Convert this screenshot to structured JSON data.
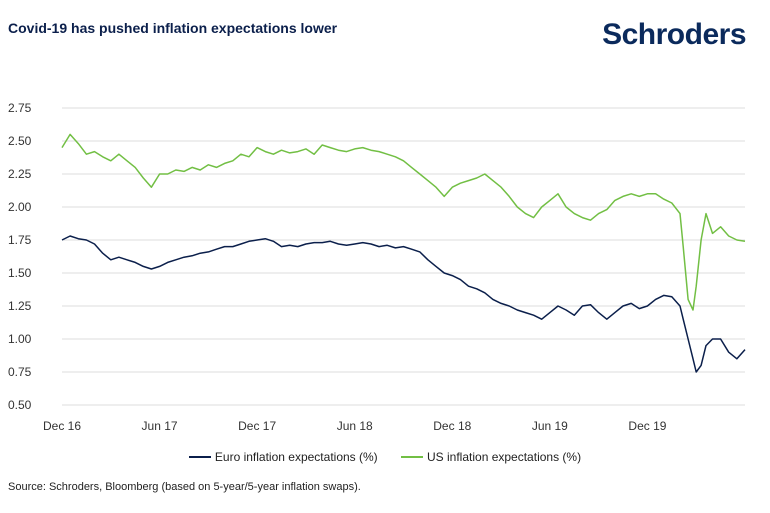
{
  "header": {
    "title": "Covid-19 has pushed inflation expectations lower",
    "logo": "Schroders"
  },
  "footer": {
    "source": "Source: Schroders, Bloomberg (based on 5-year/5-year inflation swaps)."
  },
  "chart_data": {
    "type": "line",
    "title": "Covid-19 has pushed inflation expectations lower",
    "xlabel": "",
    "ylabel": "",
    "ylim": [
      0.5,
      2.75
    ],
    "yticks": [
      "0.50",
      "0.75",
      "1.00",
      "1.25",
      "1.50",
      "1.75",
      "2.00",
      "2.25",
      "2.50",
      "2.75"
    ],
    "ytick_values": [
      0.5,
      0.75,
      1.0,
      1.25,
      1.5,
      1.75,
      2.0,
      2.25,
      2.5,
      2.75
    ],
    "xlim": [
      0,
      42
    ],
    "xticks": [
      "Dec 16",
      "Jun 17",
      "Dec 17",
      "Jun 18",
      "Dec 18",
      "Jun 19",
      "Dec 19"
    ],
    "xtick_values": [
      0,
      6,
      12,
      18,
      24,
      30,
      36
    ],
    "grid": "horizontal",
    "legend_position": "bottom",
    "colors": {
      "euro": "#0b1f4b",
      "us": "#72bf44",
      "grid": "#dddddd"
    },
    "x": [
      0,
      0.5,
      1,
      1.5,
      2,
      2.5,
      3,
      3.5,
      4,
      4.5,
      5,
      5.5,
      6,
      6.5,
      7,
      7.5,
      8,
      8.5,
      9,
      9.5,
      10,
      10.5,
      11,
      11.5,
      12,
      12.5,
      13,
      13.5,
      14,
      14.5,
      15,
      15.5,
      16,
      16.5,
      17,
      17.5,
      18,
      18.5,
      19,
      19.5,
      20,
      20.5,
      21,
      21.5,
      22,
      22.5,
      23,
      23.5,
      24,
      24.5,
      25,
      25.5,
      26,
      26.5,
      27,
      27.5,
      28,
      28.5,
      29,
      29.5,
      30,
      30.5,
      31,
      31.5,
      32,
      32.5,
      33,
      33.5,
      34,
      34.5,
      35,
      35.5,
      36,
      36.5,
      37,
      37.5,
      38,
      38.2,
      38.5,
      38.8,
      39,
      39.3,
      39.6,
      40,
      40.5,
      41,
      41.5,
      42
    ],
    "series": [
      {
        "name": "Euro inflation expectations (%)",
        "values": [
          1.75,
          1.78,
          1.76,
          1.75,
          1.72,
          1.65,
          1.6,
          1.62,
          1.6,
          1.58,
          1.55,
          1.53,
          1.55,
          1.58,
          1.6,
          1.62,
          1.63,
          1.65,
          1.66,
          1.68,
          1.7,
          1.7,
          1.72,
          1.74,
          1.75,
          1.76,
          1.74,
          1.7,
          1.71,
          1.7,
          1.72,
          1.73,
          1.73,
          1.74,
          1.72,
          1.71,
          1.72,
          1.73,
          1.72,
          1.7,
          1.71,
          1.69,
          1.7,
          1.68,
          1.66,
          1.6,
          1.55,
          1.5,
          1.48,
          1.45,
          1.4,
          1.38,
          1.35,
          1.3,
          1.27,
          1.25,
          1.22,
          1.2,
          1.18,
          1.15,
          1.2,
          1.25,
          1.22,
          1.18,
          1.25,
          1.26,
          1.2,
          1.15,
          1.2,
          1.25,
          1.27,
          1.23,
          1.25,
          1.3,
          1.33,
          1.32,
          1.25,
          1.15,
          1.0,
          0.85,
          0.75,
          0.8,
          0.95,
          1.0,
          1.0,
          0.9,
          0.85,
          0.92
        ]
      },
      {
        "name": "US inflation expectations (%)",
        "values": [
          2.45,
          2.55,
          2.48,
          2.4,
          2.42,
          2.38,
          2.35,
          2.4,
          2.35,
          2.3,
          2.22,
          2.15,
          2.25,
          2.25,
          2.28,
          2.27,
          2.3,
          2.28,
          2.32,
          2.3,
          2.33,
          2.35,
          2.4,
          2.38,
          2.45,
          2.42,
          2.4,
          2.43,
          2.41,
          2.42,
          2.44,
          2.4,
          2.47,
          2.45,
          2.43,
          2.42,
          2.44,
          2.45,
          2.43,
          2.42,
          2.4,
          2.38,
          2.35,
          2.3,
          2.25,
          2.2,
          2.15,
          2.08,
          2.15,
          2.18,
          2.2,
          2.22,
          2.25,
          2.2,
          2.15,
          2.08,
          2.0,
          1.95,
          1.92,
          2.0,
          2.05,
          2.1,
          2.0,
          1.95,
          1.92,
          1.9,
          1.95,
          1.98,
          2.05,
          2.08,
          2.1,
          2.08,
          2.1,
          2.1,
          2.06,
          2.03,
          1.95,
          1.7,
          1.3,
          1.22,
          1.4,
          1.75,
          1.95,
          1.8,
          1.85,
          1.78,
          1.75,
          1.74
        ]
      }
    ]
  }
}
